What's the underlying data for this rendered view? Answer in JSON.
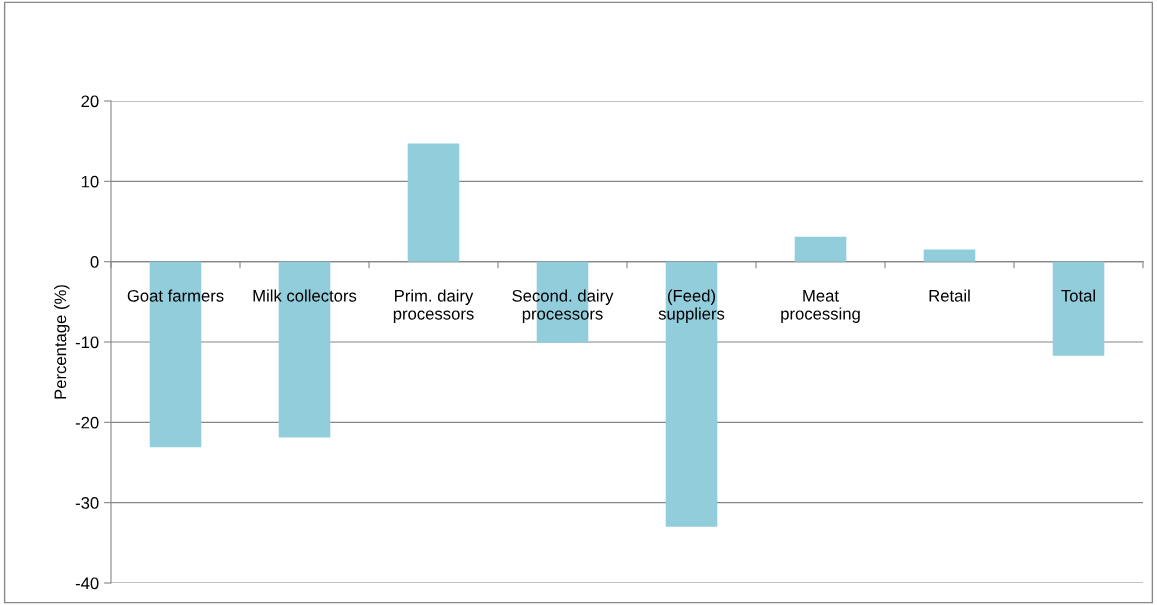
{
  "chart_data": {
    "type": "bar",
    "ylabel": "Percentage (%)",
    "categories": [
      "Goat farmers",
      "Milk collectors",
      "Prim. dairy\nprocessors",
      "Second. dairy\nprocessors",
      "(Feed)\nsuppliers",
      "Meat\nprocessing",
      "Retail",
      "Total"
    ],
    "values": [
      -23.1,
      -21.9,
      14.7,
      -10.1,
      -33.0,
      3.1,
      1.5,
      -11.7
    ],
    "color": "#92cddc",
    "ylim": [
      -40,
      20
    ],
    "yticks": [
      -40,
      -30,
      -20,
      -10,
      0,
      10,
      20
    ],
    "grid": "y",
    "legend": false
  }
}
